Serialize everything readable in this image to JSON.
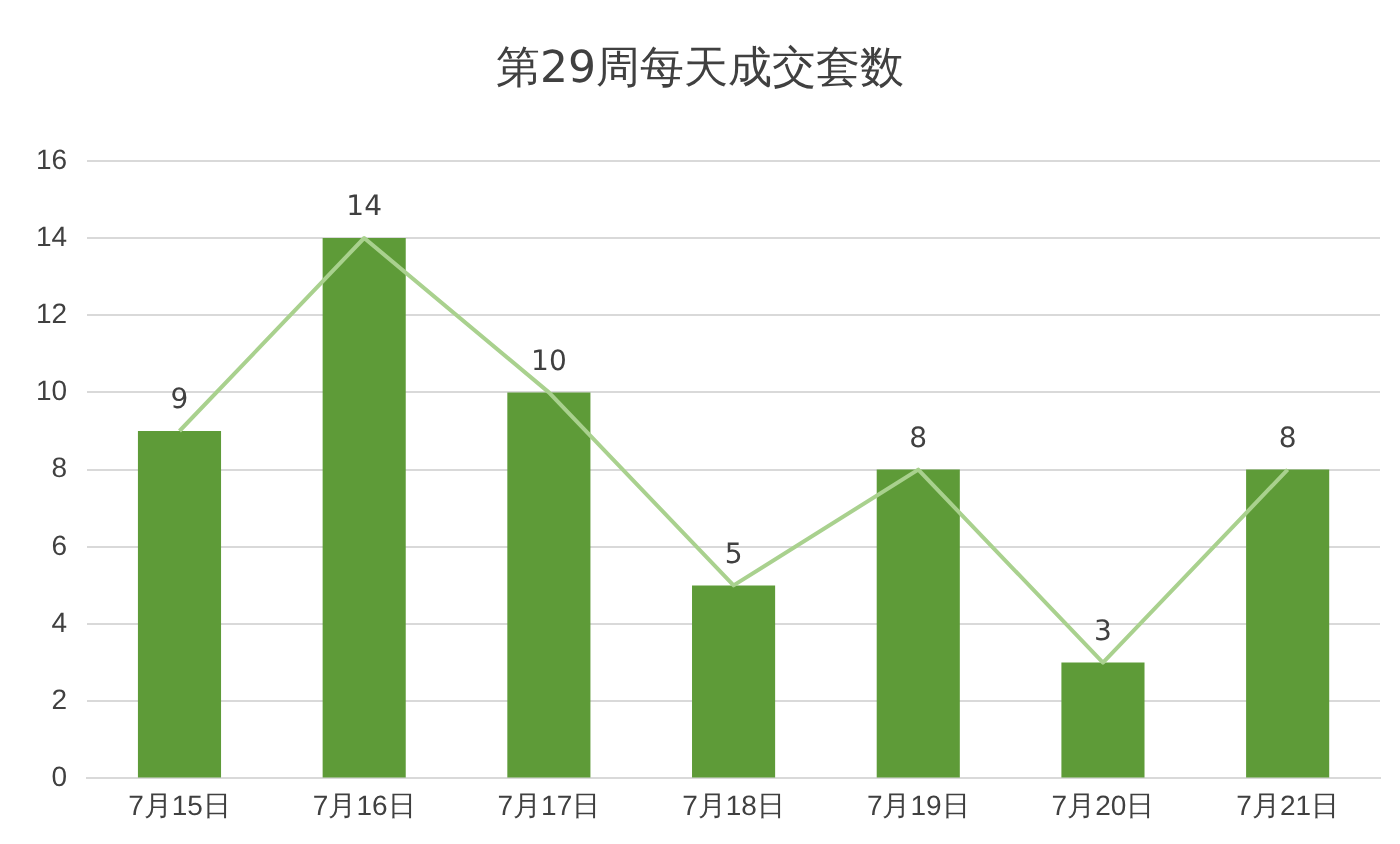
{
  "chart_data": {
    "type": "bar",
    "title": "第29周每天成交套数",
    "categories": [
      "7月15日",
      "7月16日",
      "7月17日",
      "7月18日",
      "7月19日",
      "7月20日",
      "7月21日"
    ],
    "series": [
      {
        "type": "bar",
        "color": "#5e9b38",
        "values": [
          9,
          14,
          10,
          5,
          8,
          3,
          8
        ],
        "value_labels": [
          "9",
          "14",
          "10",
          "5",
          "8",
          "3",
          "8"
        ]
      },
      {
        "type": "line",
        "color": "#a9d18e",
        "values": [
          9,
          14,
          10,
          5,
          8,
          3,
          8
        ]
      }
    ],
    "ylim": [
      0,
      16
    ],
    "yticks": [
      0,
      2,
      4,
      6,
      8,
      10,
      12,
      14,
      16
    ],
    "grid": "y",
    "marker": "none",
    "line_style": "solid"
  }
}
